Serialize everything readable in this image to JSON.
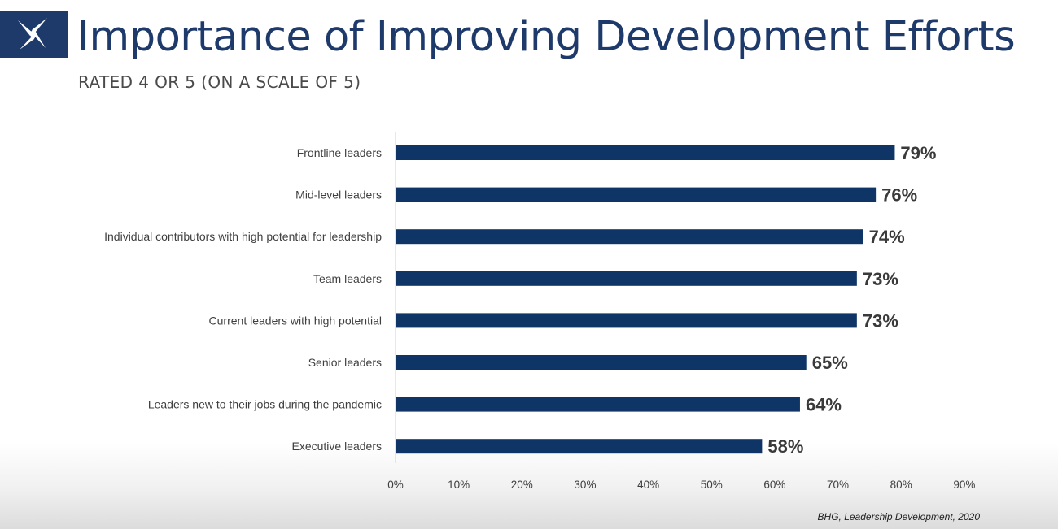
{
  "slide": {
    "title": "Importance of Improving Development Efforts",
    "subtitle": "RATED 4 OR 5 (ON A SCALE OF 5)",
    "source": "BHG, Leadership Development, 2020"
  },
  "logo": {
    "icon": "star-burst-logo-icon",
    "background": "#1d3a6b"
  },
  "chart_data": {
    "type": "bar",
    "orientation": "horizontal",
    "title": "Importance of Improving Development Efforts",
    "subtitle": "RATED 4 OR 5 (ON A SCALE OF 5)",
    "xlabel": "",
    "ylabel": "",
    "categories": [
      "Frontline leaders",
      "Mid-level leaders",
      "Individual contributors with high potential for leadership",
      "Team leaders",
      "Current leaders with high potential",
      "Senior leaders",
      "Leaders new to their jobs during the pandemic",
      "Executive leaders"
    ],
    "values": [
      79,
      76,
      74,
      73,
      73,
      65,
      64,
      58
    ],
    "data_labels": [
      "79%",
      "76%",
      "74%",
      "73%",
      "73%",
      "65%",
      "64%",
      "58%"
    ],
    "xlim": [
      0,
      90
    ],
    "xticks": [
      0,
      10,
      20,
      30,
      40,
      50,
      60,
      70,
      80,
      90
    ],
    "xtick_labels": [
      "0%",
      "10%",
      "20%",
      "30%",
      "40%",
      "50%",
      "60%",
      "70%",
      "80%",
      "90%"
    ],
    "grid": false,
    "legend": "none",
    "colors": {
      "bar": "#0e3566",
      "label_value": "#3a3a3a",
      "category_text": "#3f3f3f",
      "axis": "#d0d0d0"
    }
  }
}
